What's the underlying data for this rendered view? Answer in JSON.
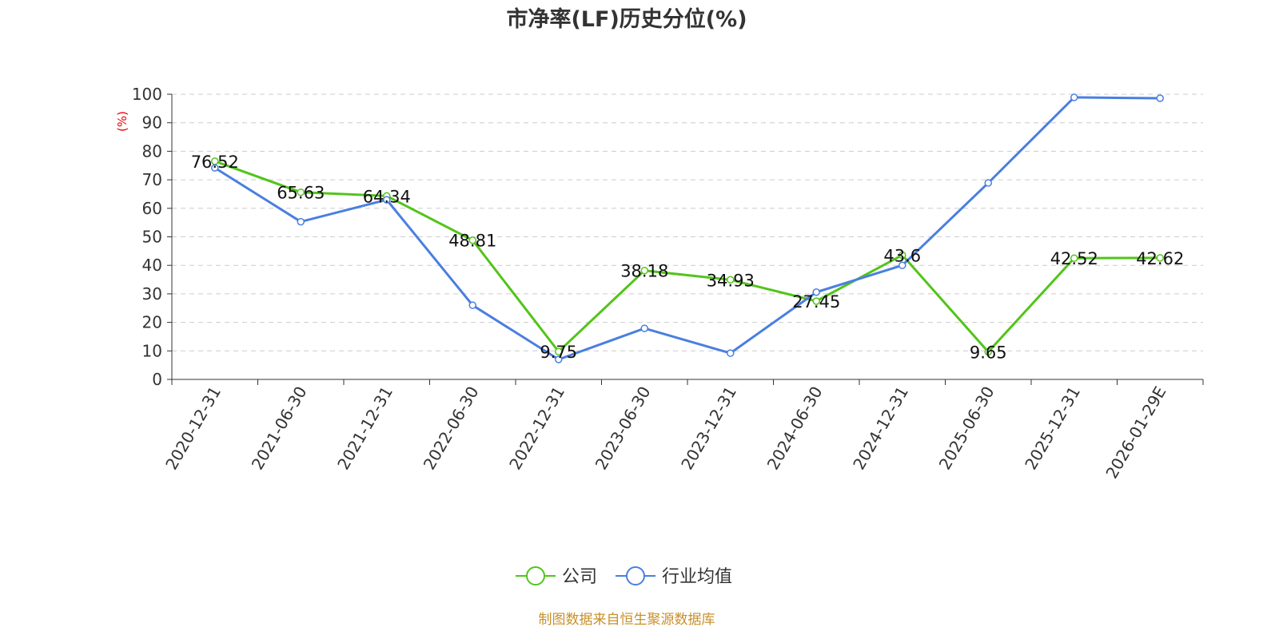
{
  "chart_data": {
    "type": "line",
    "title": "市净率(LF)历史分位(%)",
    "ylabel": "(%)",
    "ylim": [
      0,
      100
    ],
    "yticks": [
      0,
      10,
      20,
      30,
      40,
      50,
      60,
      70,
      80,
      90,
      100
    ],
    "grid": true,
    "legend_position": "bottom",
    "categories": [
      "2020-12-31",
      "2021-06-30",
      "2021-12-31",
      "2022-06-30",
      "2022-12-31",
      "2023-06-30",
      "2023-12-31",
      "2024-06-30",
      "2024-12-31",
      "2025-06-30",
      "2025-12-31",
      "2026-01-29E"
    ],
    "series": [
      {
        "name": "公司",
        "color": "#52c41a",
        "show_labels": true,
        "values": [
          76.52,
          65.63,
          64.34,
          48.81,
          9.75,
          38.18,
          34.93,
          27.45,
          43.6,
          9.65,
          42.52,
          42.62
        ]
      },
      {
        "name": "行业均值",
        "color": "#4a7fe0",
        "show_labels": false,
        "values": [
          74.2,
          55.3,
          63.0,
          26.0,
          7.0,
          17.9,
          9.2,
          30.6,
          40.0,
          68.9,
          98.9,
          98.6
        ]
      }
    ]
  },
  "footer": {
    "source": "制图数据来自恒生聚源数据库",
    "color": "#c8902a"
  }
}
